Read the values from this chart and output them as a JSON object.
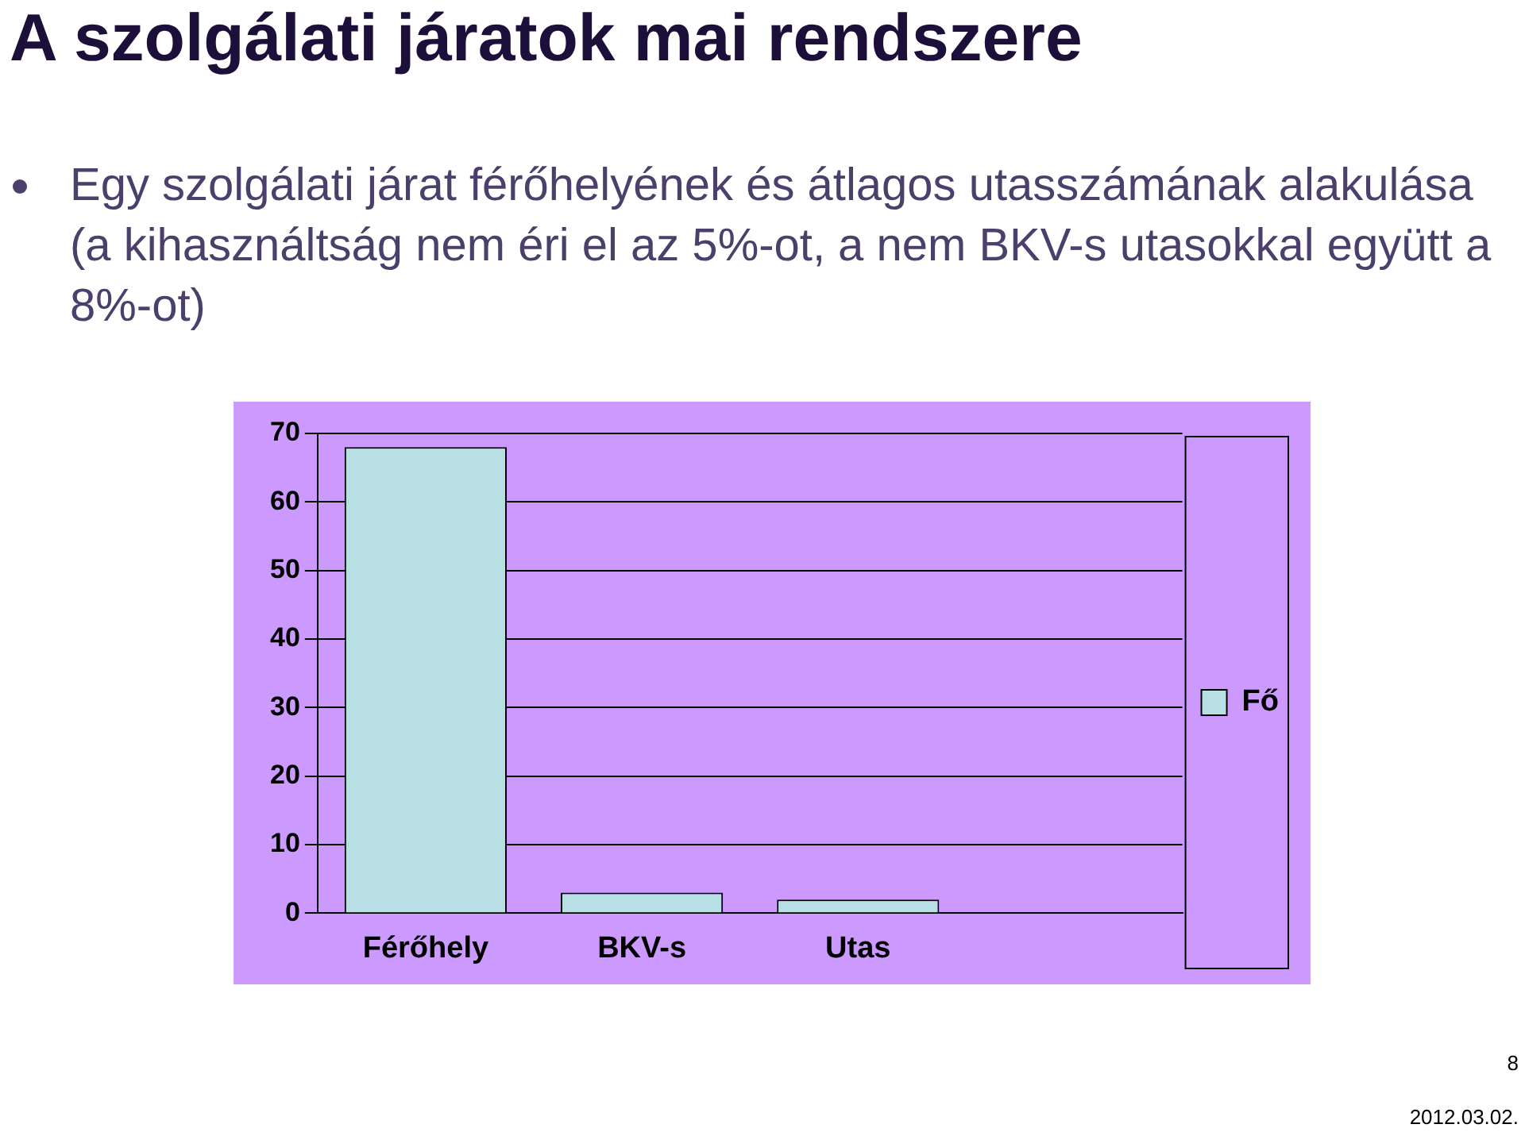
{
  "chart_data": {
    "type": "bar",
    "title": "A szolgálati járatok mai rendszere",
    "subtitle": "Egy szolgálati járat férőhelyének és átlagos utasszámának alakulása (a kihasználtság nem éri el az 5%-ot, a nem BKV-s utasokkal együtt a 8%-ot)",
    "categories": [
      "Férőhely",
      "BKV-s",
      "Utas",
      null
    ],
    "series": [
      {
        "name": "Fő",
        "color": "#b8e0e4",
        "values": [
          68,
          3,
          2,
          null
        ]
      }
    ],
    "ylim": [
      0,
      70
    ],
    "yticks": [
      0,
      10,
      20,
      30,
      40,
      50,
      60,
      70
    ],
    "grid": "y",
    "legend": "right",
    "annotations": [
      "8",
      "2012.03.02."
    ]
  }
}
